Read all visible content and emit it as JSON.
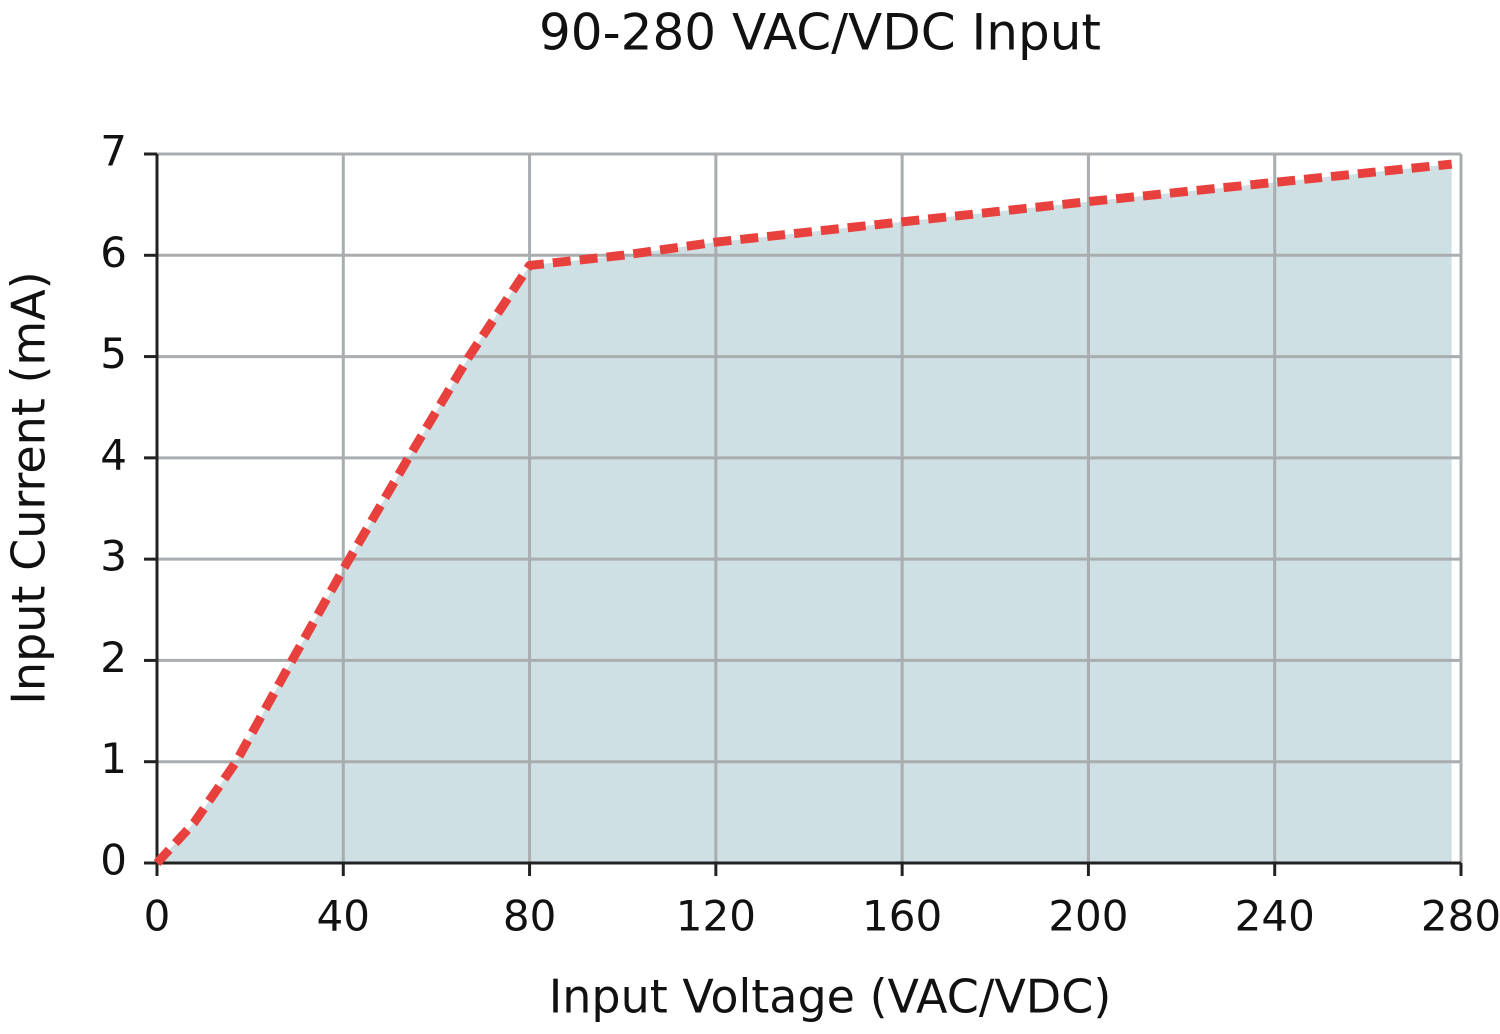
{
  "chart_data": {
    "type": "area",
    "title": "90-280 VAC/VDC Input",
    "x_label": "Input Voltage (VAC/VDC)",
    "y_label": "Input Current (mA)",
    "x": [
      0,
      8,
      17,
      29,
      40,
      54,
      67,
      80,
      100,
      120,
      160,
      200,
      240,
      278
    ],
    "series": [
      {
        "values": [
          0,
          0.4,
          1,
          2,
          2.9,
          4,
          5,
          5.9,
          6.0,
          6.13,
          6.33,
          6.53,
          6.72,
          6.9
        ],
        "color": "#e8403d",
        "fill": "#cfe0e5",
        "dashed": true
      }
    ],
    "xlim": [
      0,
      280
    ],
    "xticks": [
      0,
      40,
      80,
      120,
      160,
      200,
      240,
      280
    ],
    "ylim": [
      0,
      7
    ],
    "yticks": [
      0,
      1,
      2,
      3,
      4,
      5,
      6,
      7
    ],
    "grid": true
  }
}
